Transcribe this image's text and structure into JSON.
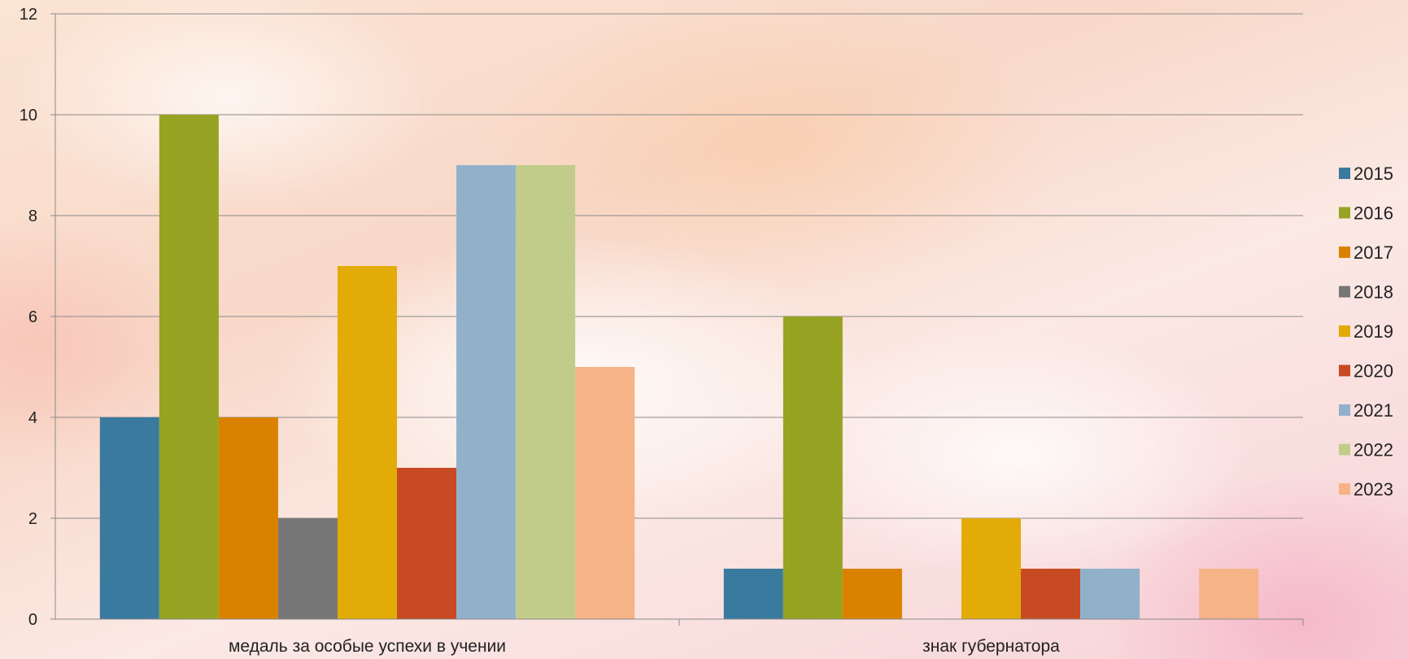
{
  "chart_data": {
    "type": "bar",
    "title": "",
    "xlabel": "",
    "ylabel": "",
    "ylim": [
      0,
      12
    ],
    "yticks": [
      0,
      2,
      4,
      6,
      8,
      10,
      12
    ],
    "grid": true,
    "legend_position": "right",
    "categories": [
      "медаль за особые успехи в учении",
      "знак губернатора"
    ],
    "series": [
      {
        "name": "2015",
        "color": "#3a7a9e",
        "values": [
          4,
          1
        ]
      },
      {
        "name": "2016",
        "color": "#96a323",
        "values": [
          10,
          6
        ]
      },
      {
        "name": "2017",
        "color": "#db8100",
        "values": [
          4,
          1
        ]
      },
      {
        "name": "2018",
        "color": "#777777",
        "values": [
          2,
          0
        ]
      },
      {
        "name": "2019",
        "color": "#e2ab07",
        "values": [
          7,
          2
        ]
      },
      {
        "name": "2020",
        "color": "#c74a22",
        "values": [
          3,
          1
        ]
      },
      {
        "name": "2021",
        "color": "#91b0ca",
        "values": [
          9,
          1
        ]
      },
      {
        "name": "2022",
        "color": "#c1cc8a",
        "values": [
          9,
          0
        ]
      },
      {
        "name": "2023",
        "color": "#f5b386",
        "values": [
          5,
          1
        ]
      }
    ]
  }
}
